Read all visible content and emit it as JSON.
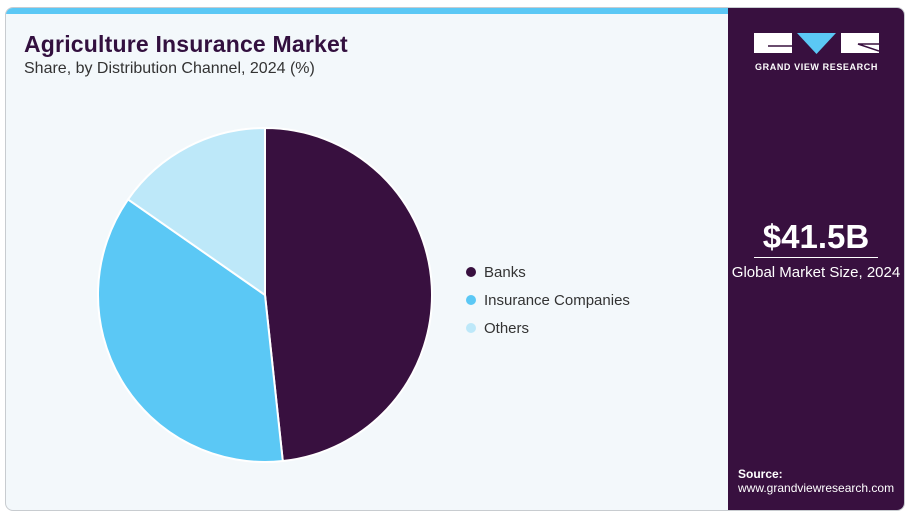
{
  "header": {
    "title": "Agriculture Insurance Market",
    "subtitle": "Share, by Distribution Channel, 2024 (%)"
  },
  "brand": {
    "name": "GRAND VIEW RESEARCH",
    "colors": {
      "dark": "#38103f",
      "accent": "#5bc8f5"
    }
  },
  "stat": {
    "value": "$41.5B",
    "label": "Global Market Size, 2024"
  },
  "source": {
    "label": "Source:",
    "url": "www.grandviewresearch.com"
  },
  "chart_data": {
    "type": "pie",
    "title": "Agriculture Insurance Market",
    "subtitle": "Share, by Distribution Channel, 2024 (%)",
    "legend_position": "right",
    "categories": [
      "Banks",
      "Insurance Companies",
      "Others"
    ],
    "values": [
      48.3,
      36.4,
      15.3
    ],
    "colors": [
      "#38103f",
      "#5bc8f5",
      "#bde8f9"
    ]
  }
}
